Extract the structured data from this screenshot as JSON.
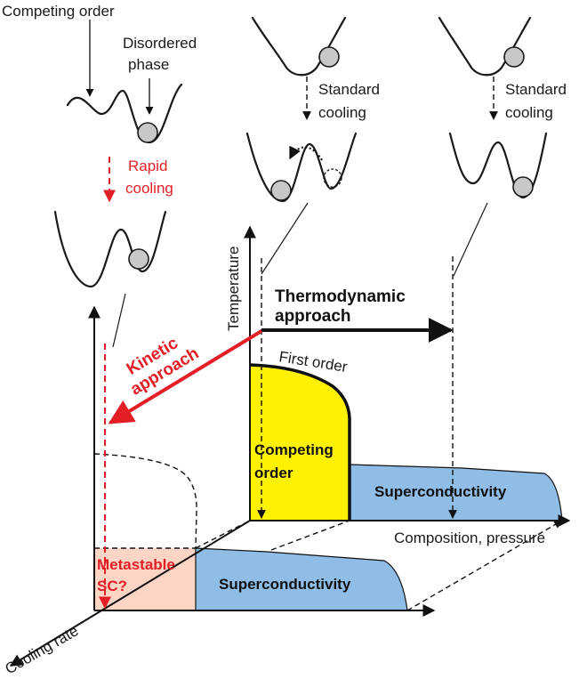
{
  "labels": {
    "competing_order_top": "Competing order",
    "disordered_line1": "Disordered",
    "disordered_line2": "phase",
    "rapid_line1": "Rapid",
    "rapid_line2": "cooling",
    "standard1_line1": "Standard",
    "standard1_line2": "cooling",
    "standard2_line1": "Standard",
    "standard2_line2": "cooling",
    "temperature_axis": "Temperature",
    "thermo_line1": "Thermodynamic",
    "thermo_line2": "approach",
    "kinetic_line1": "Kinetic",
    "kinetic_line2": "approach",
    "first_order": "First order",
    "competing_region_line1": "Competing",
    "competing_region_line2": "order",
    "sc_back": "Superconductivity",
    "composition_axis": "Composition, pressure",
    "metastable_line1": "Metastable",
    "metastable_line2": "SC?",
    "sc_front": "Superconductivity",
    "cooling_rate_axis": "Cooling rate"
  },
  "colors": {
    "competing_order_fill": "#fff200",
    "superconductivity_fill": "#8fbde6",
    "metastable_fill": "#fcd5c5",
    "kinetic_arrow": "#e41e26",
    "ball_fill": "#c8c8c8"
  }
}
